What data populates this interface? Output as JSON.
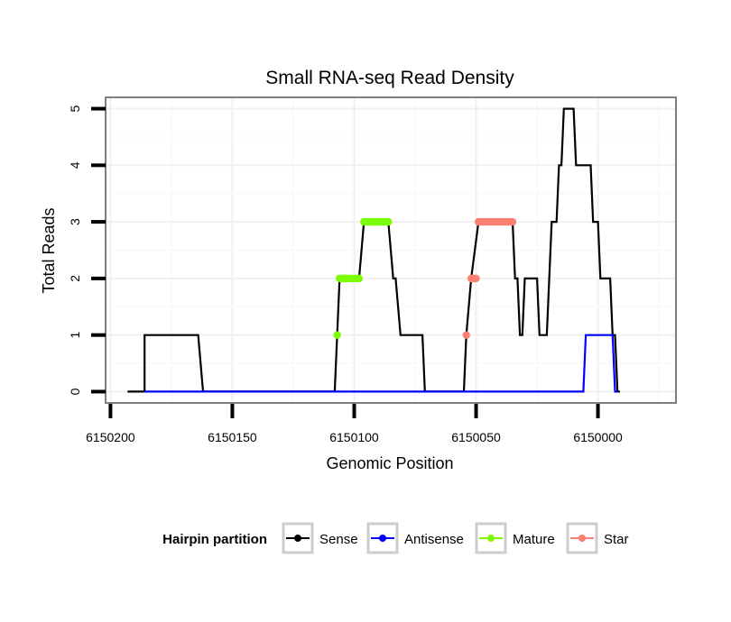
{
  "chart_data": {
    "type": "line",
    "title": "Small RNA-seq Read Density",
    "xlabel": "Genomic Position",
    "ylabel": "Total Reads",
    "xlim": [
      6150202,
      6149968
    ],
    "x_reversed": true,
    "ylim": [
      -0.2,
      5.2
    ],
    "grid": true,
    "x_ticks": [
      6150200,
      6150150,
      6150100,
      6150050,
      6150000
    ],
    "x_tick_labels": [
      "6150200",
      "6150150",
      "6150100",
      "6150050",
      "6150000"
    ],
    "y_ticks": [
      0,
      1,
      2,
      3,
      4,
      5
    ],
    "y_tick_labels": [
      "0",
      "1",
      "2",
      "3",
      "4",
      "5"
    ],
    "legend": {
      "title": "Hairpin partition",
      "position": "bottom",
      "entries": [
        {
          "label": "Sense",
          "color": "#000000"
        },
        {
          "label": "Antisense",
          "color": "#0000ff"
        },
        {
          "label": "Mature",
          "color": "#7cfc00"
        },
        {
          "label": "Star",
          "color": "#fa8072"
        }
      ]
    },
    "series": [
      {
        "name": "Sense",
        "color": "#000000",
        "points": [
          [
            6150193,
            0
          ],
          [
            6150186,
            0
          ],
          [
            6150186,
            1
          ],
          [
            6150164,
            1
          ],
          [
            6150162,
            0
          ],
          [
            6150108,
            0
          ],
          [
            6150107,
            1
          ],
          [
            6150106,
            2
          ],
          [
            6150098,
            2
          ],
          [
            6150096,
            3
          ],
          [
            6150086,
            3
          ],
          [
            6150084,
            2
          ],
          [
            6150083,
            2
          ],
          [
            6150081,
            1
          ],
          [
            6150072,
            1
          ],
          [
            6150071,
            0
          ],
          [
            6150055,
            0
          ],
          [
            6150054,
            1
          ],
          [
            6150052,
            2
          ],
          [
            6150049,
            3
          ],
          [
            6150035,
            3
          ],
          [
            6150034,
            2
          ],
          [
            6150033,
            2
          ],
          [
            6150032,
            1
          ],
          [
            6150031,
            1
          ],
          [
            6150030,
            2
          ],
          [
            6150025,
            2
          ],
          [
            6150024,
            1
          ],
          [
            6150021,
            1
          ],
          [
            6150019,
            3
          ],
          [
            6150017,
            3
          ],
          [
            6150016,
            4
          ],
          [
            6150015,
            4
          ],
          [
            6150014,
            5
          ],
          [
            6150010,
            5
          ],
          [
            6150009,
            4
          ],
          [
            6150003,
            4
          ],
          [
            6150002,
            3
          ],
          [
            6150000,
            3
          ],
          [
            6149999,
            2
          ],
          [
            6149995,
            2
          ],
          [
            6149994,
            1
          ],
          [
            6149993,
            1
          ],
          [
            6149992,
            0
          ],
          [
            6149991,
            0
          ]
        ]
      },
      {
        "name": "Antisense",
        "color": "#0000ff",
        "points": [
          [
            6150186,
            0
          ],
          [
            6150006,
            0
          ],
          [
            6150005,
            1
          ],
          [
            6149994,
            1
          ],
          [
            6149993,
            0
          ],
          [
            6149992,
            0
          ]
        ]
      },
      {
        "name": "Mature",
        "color": "#7cfc00",
        "point_runs": [
          {
            "x_start": 6150107,
            "x_end": 6150107,
            "y": 1
          },
          {
            "x_start": 6150106,
            "x_end": 6150098,
            "y": 2
          },
          {
            "x_start": 6150096,
            "x_end": 6150086,
            "y": 3
          }
        ]
      },
      {
        "name": "Star",
        "color": "#fa8072",
        "point_runs": [
          {
            "x_start": 6150054,
            "x_end": 6150054,
            "y": 1
          },
          {
            "x_start": 6150052,
            "x_end": 6150050,
            "y": 2
          },
          {
            "x_start": 6150049,
            "x_end": 6150035,
            "y": 3
          }
        ]
      }
    ]
  }
}
